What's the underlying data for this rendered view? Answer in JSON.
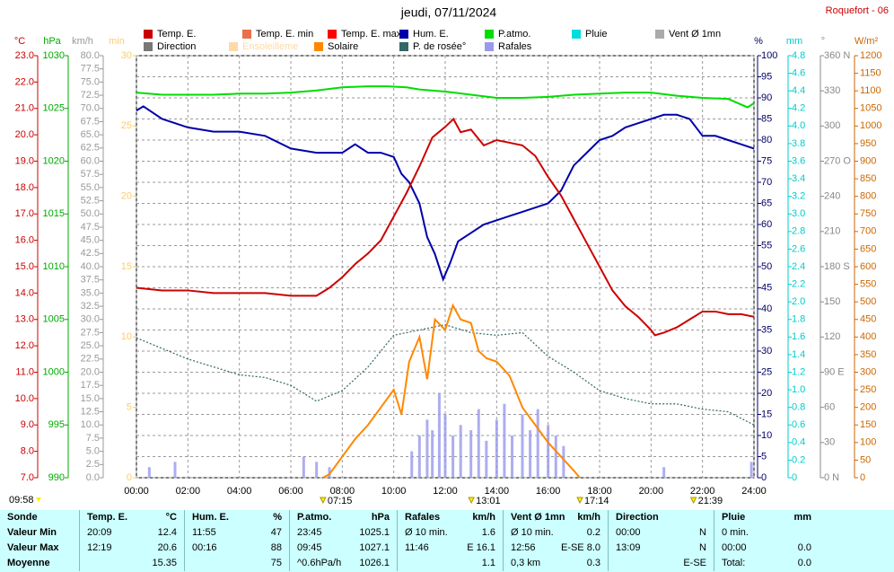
{
  "chart_data": {
    "type": "line",
    "title": "jeudi, 07/11/2024",
    "station": "Roquefort - 06",
    "day_length": "09:58",
    "xlim": [
      0,
      24
    ],
    "xticks": [
      {
        "value": 0,
        "label": "00:00"
      },
      {
        "value": 2,
        "label": "02:00"
      },
      {
        "value": 4,
        "label": "04:00"
      },
      {
        "value": 6,
        "label": "06:00"
      },
      {
        "value": 8,
        "label": "08:00"
      },
      {
        "value": 10,
        "label": "10:00"
      },
      {
        "value": 12,
        "label": "12:00"
      },
      {
        "value": 14,
        "label": "14:00"
      },
      {
        "value": 16,
        "label": "16:00"
      },
      {
        "value": 18,
        "label": "18:00"
      },
      {
        "value": 20,
        "label": "20:00"
      },
      {
        "value": 22,
        "label": "22:00"
      },
      {
        "value": 24,
        "label": "24:00"
      }
    ],
    "markers": [
      {
        "value": 7.25,
        "label": "07:15"
      },
      {
        "value": 13.0167,
        "label": "13:01"
      },
      {
        "value": 17.2333,
        "label": "17:14"
      },
      {
        "value": 21.65,
        "label": "21:39"
      }
    ],
    "grid": true,
    "legend": [
      {
        "name": "Temp. E.",
        "color": "#cc0000"
      },
      {
        "name": "Temp. E. min",
        "color": "#e8704a"
      },
      {
        "name": "Temp. E. max",
        "color": "#ff0000"
      },
      {
        "name": "Hum. E.",
        "color": "#0000aa"
      },
      {
        "name": "P.atmo.",
        "color": "#00dd00"
      },
      {
        "name": "Pluie",
        "color": "#00dddd"
      },
      {
        "name": "Vent Ø 1mn",
        "color": "#aaaaaa"
      },
      {
        "name": "Direction",
        "color": "#777777"
      },
      {
        "name": "Ensoleilleme",
        "color": "#ffd9a8"
      },
      {
        "name": "Solaire",
        "color": "#ff8800"
      },
      {
        "name": "P. de rosée°",
        "color": "#336666"
      },
      {
        "name": "Rafales",
        "color": "#9999ee"
      }
    ],
    "axes": [
      {
        "unit": "°C",
        "color": "#cc0000",
        "lim": [
          7,
          23
        ],
        "ticks": [
          {
            "value": 7,
            "label": "7.0"
          },
          {
            "value": 8,
            "label": "8.0"
          },
          {
            "value": 9,
            "label": "9.0"
          },
          {
            "value": 10,
            "label": "10.0"
          },
          {
            "value": 11,
            "label": "11.0"
          },
          {
            "value": 12,
            "label": "12.0"
          },
          {
            "value": 13,
            "label": "13.0"
          },
          {
            "value": 14,
            "label": "14.0"
          },
          {
            "value": 15,
            "label": "15.0"
          },
          {
            "value": 16,
            "label": "16.0"
          },
          {
            "value": 17,
            "label": "17.0"
          },
          {
            "value": 18,
            "label": "18.0"
          },
          {
            "value": 19,
            "label": "19.0"
          },
          {
            "value": 20,
            "label": "20.0"
          },
          {
            "value": 21,
            "label": "21.0"
          },
          {
            "value": 22,
            "label": "22.0"
          },
          {
            "value": 23,
            "label": "23.0"
          }
        ]
      },
      {
        "unit": "hPa",
        "color": "#00aa00",
        "lim": [
          990,
          1030
        ],
        "ticks": [
          990,
          995,
          1000,
          1005,
          1010,
          1015,
          1020,
          1025,
          1030
        ]
      },
      {
        "unit": "km/h",
        "color": "#999999",
        "lim": [
          0,
          80
        ],
        "ticks": [
          {
            "value": 0,
            "label": "0.0"
          },
          {
            "value": 2.5,
            "label": "2.5"
          },
          {
            "value": 5,
            "label": "5.0"
          },
          {
            "value": 7.5,
            "label": "7.5"
          },
          {
            "value": 10,
            "label": "10.0"
          },
          {
            "value": 12.5,
            "label": "12.5"
          },
          {
            "value": 15,
            "label": "15.0"
          },
          {
            "value": 17.5,
            "label": "17.5"
          },
          {
            "value": 20,
            "label": "20.0"
          },
          {
            "value": 22.5,
            "label": "22.5"
          },
          {
            "value": 25,
            "label": "25.0"
          },
          {
            "value": 27.5,
            "label": "27.5"
          },
          {
            "value": 30,
            "label": "30.0"
          },
          {
            "value": 32.5,
            "label": "32.5"
          },
          {
            "value": 35,
            "label": "35.0"
          },
          {
            "value": 37.5,
            "label": "37.5"
          },
          {
            "value": 40,
            "label": "40.0"
          },
          {
            "value": 42.5,
            "label": "42.5"
          },
          {
            "value": 45,
            "label": "45.0"
          },
          {
            "value": 47.5,
            "label": "47.5"
          },
          {
            "value": 50,
            "label": "50.0"
          },
          {
            "value": 52.5,
            "label": "52.5"
          },
          {
            "value": 55,
            "label": "55.0"
          },
          {
            "value": 57.5,
            "label": "57.5"
          },
          {
            "value": 60,
            "label": "60.0"
          },
          {
            "value": 62.5,
            "label": "62.5"
          },
          {
            "value": 65,
            "label": "65.0"
          },
          {
            "value": 67.5,
            "label": "67.5"
          },
          {
            "value": 70,
            "label": "70.0"
          },
          {
            "value": 72.5,
            "label": "72.5"
          },
          {
            "value": 75,
            "label": "75.0"
          },
          {
            "value": 77.5,
            "label": "77.5"
          },
          {
            "value": 80,
            "label": "80.0"
          }
        ]
      },
      {
        "unit": "min",
        "color": "#ffcc66",
        "lim": [
          0,
          30
        ],
        "ticks": [
          0,
          5,
          10,
          15,
          20,
          25,
          30
        ]
      },
      {
        "unit": "%",
        "color": "#000066",
        "lim": [
          0,
          100
        ],
        "ticks": [
          0,
          5,
          10,
          15,
          20,
          25,
          30,
          35,
          40,
          45,
          50,
          55,
          60,
          65,
          70,
          75,
          80,
          85,
          90,
          95,
          100
        ]
      },
      {
        "unit": "mm",
        "color": "#00cccc",
        "lim": [
          0,
          4.8
        ],
        "ticks": [
          0,
          {
            "value": 0.2,
            "label": "0.2"
          },
          {
            "value": 0.4,
            "label": "0.4"
          },
          {
            "value": 0.6,
            "label": "0.6"
          },
          {
            "value": 0.8,
            "label": "0.8"
          },
          {
            "value": 1,
            "label": "1.0"
          },
          {
            "value": 1.2,
            "label": "1.2"
          },
          {
            "value": 1.4,
            "label": "1.4"
          },
          {
            "value": 1.6,
            "label": "1.6"
          },
          {
            "value": 1.8,
            "label": "1.8"
          },
          {
            "value": 2,
            "label": "2.0"
          },
          {
            "value": 2.2,
            "label": "2.2"
          },
          {
            "value": 2.4,
            "label": "2.4"
          },
          {
            "value": 2.6,
            "label": "2.6"
          },
          {
            "value": 2.8,
            "label": "2.8"
          },
          {
            "value": 3,
            "label": "3.0"
          },
          {
            "value": 3.2,
            "label": "3.2"
          },
          {
            "value": 3.4,
            "label": "3.4"
          },
          {
            "value": 3.6,
            "label": "3.6"
          },
          {
            "value": 3.8,
            "label": "3.8"
          },
          {
            "value": 4,
            "label": "4.0"
          },
          {
            "value": 4.2,
            "label": "4.2"
          },
          {
            "value": 4.4,
            "label": "4.4"
          },
          {
            "value": 4.6,
            "label": "4.6"
          },
          {
            "value": 4.8,
            "label": "4.8"
          }
        ]
      },
      {
        "unit": "°",
        "color": "#888888",
        "lim": [
          0,
          360
        ],
        "ticks": [
          {
            "value": 0,
            "label": "0 N"
          },
          30,
          60,
          {
            "value": 90,
            "label": "90 E"
          },
          120,
          150,
          {
            "value": 180,
            "label": "180 S"
          },
          210,
          240,
          {
            "value": 270,
            "label": "270 O"
          },
          300,
          330,
          {
            "value": 360,
            "label": "360 N"
          }
        ]
      },
      {
        "unit": "W/m²",
        "color": "#cc6600",
        "lim": [
          0,
          1200
        ],
        "ticks": [
          0,
          50,
          100,
          150,
          200,
          250,
          300,
          350,
          400,
          450,
          500,
          550,
          600,
          650,
          700,
          750,
          800,
          850,
          900,
          950,
          1000,
          1050,
          1100,
          1150,
          1200
        ]
      }
    ],
    "series": [
      {
        "name": "P.atmo.",
        "color": "#00dd00",
        "axis": "hPa",
        "style": "line",
        "x": [
          0,
          1,
          2,
          3,
          4,
          5,
          6,
          7,
          8,
          9,
          9.75,
          10.5,
          11,
          12,
          13,
          14,
          15,
          16,
          17,
          18,
          19,
          20,
          21,
          22,
          23,
          23.75,
          24
        ],
        "values": [
          1026.5,
          1026.3,
          1026.3,
          1026.3,
          1026.4,
          1026.4,
          1026.5,
          1026.7,
          1027,
          1027.1,
          1027.1,
          1027,
          1026.8,
          1026.6,
          1026.3,
          1026,
          1026,
          1026.1,
          1026.3,
          1026.4,
          1026.5,
          1026.5,
          1026.2,
          1026,
          1025.9,
          1025.1,
          1025.5
        ]
      },
      {
        "name": "Hum. E.",
        "color": "#0000aa",
        "axis": "%",
        "style": "line",
        "x": [
          0,
          0.27,
          1,
          2,
          3,
          4,
          5,
          6,
          7,
          8,
          8.5,
          9,
          9.5,
          10,
          10.3,
          10.6,
          11,
          11.3,
          11.6,
          11.92,
          12.2,
          12.5,
          13,
          13.5,
          14,
          14.5,
          15,
          15.5,
          16,
          16.5,
          17,
          17.5,
          18,
          18.5,
          19,
          19.5,
          20,
          20.5,
          21,
          21.5,
          22,
          22.5,
          23,
          23.5,
          24
        ],
        "values": [
          87,
          88,
          85,
          83,
          82,
          82,
          81,
          78,
          77,
          77,
          79,
          77,
          77,
          76,
          72,
          70,
          65,
          57,
          53,
          47,
          51,
          56,
          58,
          60,
          61,
          62,
          63,
          64,
          65,
          68,
          74,
          77,
          80,
          81,
          83,
          84,
          85,
          86,
          86,
          85,
          81,
          81,
          80,
          79,
          78
        ]
      },
      {
        "name": "Temp. E.",
        "color": "#cc0000",
        "axis": "°C",
        "style": "line",
        "x": [
          0,
          1,
          2,
          3,
          4,
          5,
          6,
          7,
          7.5,
          8,
          8.5,
          9,
          9.5,
          10,
          10.5,
          11,
          11.5,
          12,
          12.32,
          12.6,
          13,
          13.5,
          14,
          14.5,
          15,
          15.5,
          16,
          16.5,
          17,
          17.5,
          18,
          18.5,
          19,
          19.5,
          20,
          20.15,
          20.5,
          21,
          21.5,
          22,
          22.5,
          23,
          23.5,
          24
        ],
        "values": [
          14.2,
          14.1,
          14.1,
          14,
          14,
          14,
          13.9,
          13.9,
          14.2,
          14.6,
          15.1,
          15.5,
          16,
          16.9,
          17.8,
          18.8,
          19.9,
          20.3,
          20.6,
          20.1,
          20.2,
          19.6,
          19.8,
          19.7,
          19.6,
          19.2,
          18.4,
          17.7,
          16.8,
          15.9,
          15,
          14.1,
          13.5,
          13.1,
          12.6,
          12.4,
          12.5,
          12.7,
          13,
          13.3,
          13.3,
          13.2,
          13.2,
          13.1
        ]
      },
      {
        "name": "P. de rosée°",
        "color": "#336666",
        "axis": "°C",
        "style": "dotted",
        "x": [
          0,
          1,
          2,
          3,
          4,
          5,
          6,
          7,
          8,
          9,
          10,
          11,
          12,
          13,
          14,
          15,
          16,
          17,
          18,
          19,
          20,
          21,
          22,
          23,
          24
        ],
        "values": [
          12.3,
          11.9,
          11.5,
          11.2,
          10.9,
          10.8,
          10.5,
          9.9,
          10.3,
          11.2,
          12.4,
          12.6,
          12.8,
          12.5,
          12.4,
          12.5,
          11.6,
          11,
          10.3,
          10,
          9.8,
          9.8,
          9.6,
          9.5,
          9
        ]
      },
      {
        "name": "Solaire",
        "color": "#ff8800",
        "axis": "W/m²",
        "style": "line",
        "x": [
          7.25,
          7.5,
          8,
          8.5,
          9,
          9.5,
          10,
          10.3,
          10.6,
          11,
          11.3,
          11.6,
          12,
          12.3,
          12.6,
          13,
          13.3,
          13.6,
          14,
          14.5,
          15,
          15.5,
          16,
          16.5,
          17,
          17.23
        ],
        "values": [
          0,
          10,
          60,
          110,
          150,
          200,
          250,
          180,
          330,
          400,
          280,
          450,
          420,
          490,
          450,
          440,
          360,
          340,
          330,
          290,
          200,
          150,
          100,
          60,
          20,
          0
        ]
      },
      {
        "name": "Rafales",
        "color": "#9999ee",
        "axis": "km/h",
        "style": "bars",
        "x": [
          0.5,
          1.5,
          6.5,
          7,
          7.5,
          10.7,
          11,
          11.3,
          11.5,
          11.77,
          12,
          12.3,
          12.6,
          13,
          13.3,
          13.6,
          14,
          14.3,
          14.6,
          15,
          15.3,
          15.6,
          16,
          16.3,
          16.6,
          20.5,
          23.9
        ],
        "values": [
          2,
          3,
          4,
          3,
          2,
          5,
          8,
          11,
          9,
          16.1,
          12,
          8,
          10,
          9,
          13,
          7,
          11,
          14,
          8,
          12,
          9,
          13,
          10,
          8,
          6,
          2,
          3
        ]
      }
    ]
  },
  "table": {
    "header": [
      [
        "Sonde"
      ],
      [
        "Temp. E.",
        "°C"
      ],
      [
        "Hum. E.",
        "%"
      ],
      [
        "P.atmo.",
        "hPa"
      ],
      [
        "Rafales",
        "km/h"
      ],
      [
        "Vent Ø 1mn",
        "km/h"
      ],
      [
        "Direction"
      ],
      [
        "Pluie",
        "mm"
      ]
    ],
    "rows": [
      [
        [
          "Valeur Min"
        ],
        [
          "20:09",
          "12.4"
        ],
        [
          "11:55",
          "47"
        ],
        [
          "23:45",
          "1025.1"
        ],
        [
          "Ø 10 min.",
          "1.6"
        ],
        [
          "Ø 10 min.",
          "0.2"
        ],
        [
          "00:00",
          "N"
        ],
        [
          "0 min."
        ]
      ],
      [
        [
          "Valeur Max"
        ],
        [
          "12:19",
          "20.6"
        ],
        [
          "00:16",
          "88"
        ],
        [
          "09:45",
          "1027.1"
        ],
        [
          "11:46",
          "E 16.1"
        ],
        [
          "12:56",
          "E-SE 8.0"
        ],
        [
          "13:09",
          "N"
        ],
        [
          "00:00",
          "0.0"
        ]
      ],
      [
        [
          "Moyenne"
        ],
        [
          "",
          "15.35"
        ],
        [
          "",
          "75"
        ],
        [
          "^0.6hPa/h",
          "1026.1"
        ],
        [
          "",
          "1.1"
        ],
        [
          "0,3 km",
          "0.3"
        ],
        [
          "",
          "E-SE"
        ],
        [
          "Total:",
          "0.0"
        ]
      ]
    ]
  }
}
